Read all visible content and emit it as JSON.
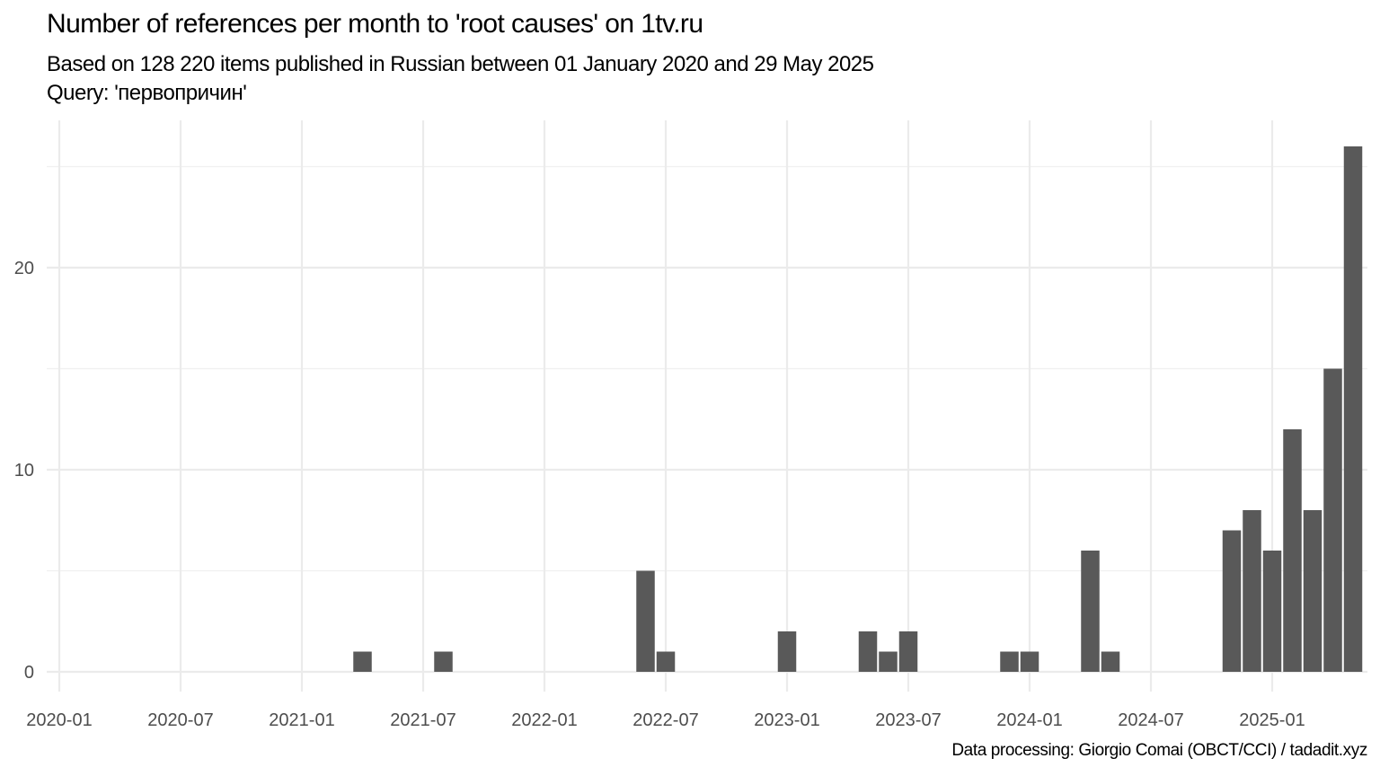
{
  "chart_data": {
    "type": "bar",
    "title": "Number of references per month to 'root causes' on 1tv.ru",
    "subtitle": "Based on 128 220 items published in Russian between 01 January 2020 and 29 May 2025",
    "query": "Query: 'первопричин'",
    "caption": "Data processing: Giorgio Comai (OBCT/CCI) / tadadit.xyz",
    "xlabel": "",
    "ylabel": "",
    "x_ticks": [
      "2020-01",
      "2020-07",
      "2021-01",
      "2021-07",
      "2022-01",
      "2022-07",
      "2023-01",
      "2023-07",
      "2024-01",
      "2024-07",
      "2025-01"
    ],
    "y_ticks": [
      0,
      10,
      20
    ],
    "ylim": [
      0,
      26
    ],
    "xlim": [
      "2020-01",
      "2025-05"
    ],
    "grid": true,
    "bar_color": "#595959",
    "categories": [
      "2021-04",
      "2021-08",
      "2022-06",
      "2022-07",
      "2023-01",
      "2023-05",
      "2023-06",
      "2023-07",
      "2023-12",
      "2024-01",
      "2024-04",
      "2024-05",
      "2024-11",
      "2024-12",
      "2025-01",
      "2025-02",
      "2025-03",
      "2025-04",
      "2025-05"
    ],
    "values": [
      1,
      1,
      5,
      1,
      2,
      2,
      1,
      2,
      1,
      1,
      6,
      1,
      7,
      8,
      6,
      12,
      8,
      15,
      26
    ]
  }
}
